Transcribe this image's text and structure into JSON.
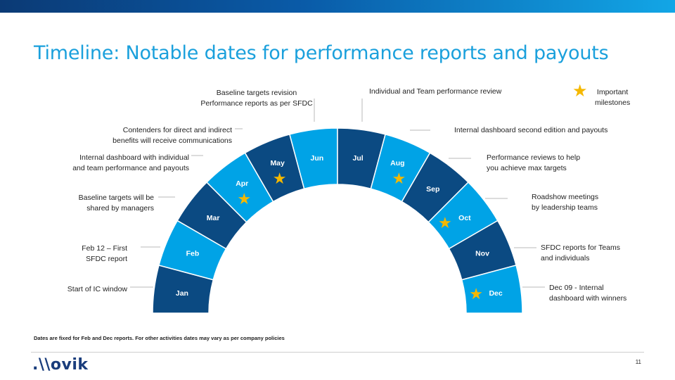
{
  "title": "Timeline: Notable dates for performance reports and payouts",
  "colors": {
    "dark": "#0b4a82",
    "light": "#00a3e6",
    "star": "#f5b800",
    "leader": "#b9b9b9"
  },
  "months": [
    {
      "label": "Jan",
      "tone": "dark",
      "star": false
    },
    {
      "label": "Feb",
      "tone": "light",
      "star": false
    },
    {
      "label": "Mar",
      "tone": "dark",
      "star": false
    },
    {
      "label": "Apr",
      "tone": "light",
      "star": true
    },
    {
      "label": "May",
      "tone": "dark",
      "star": true
    },
    {
      "label": "Jun",
      "tone": "light",
      "star": false
    },
    {
      "label": "Jul",
      "tone": "dark",
      "star": false
    },
    {
      "label": "Aug",
      "tone": "light",
      "star": true
    },
    {
      "label": "Sep",
      "tone": "dark",
      "star": false
    },
    {
      "label": "Oct",
      "tone": "light",
      "star": true
    },
    {
      "label": "Nov",
      "tone": "dark",
      "star": false
    },
    {
      "label": "Dec",
      "tone": "light",
      "star": true
    }
  ],
  "events": {
    "jan": "Start of IC window",
    "feb": "Feb 12 – First\nSFDC report",
    "mar": "Baseline targets will be\nshared by managers",
    "apr": "Internal dashboard with individual\nand team performance and payouts",
    "may": "Contenders for direct and indirect\nbenefits will receive communications",
    "jun": "Baseline targets revision\nPerformance reports as per SFDC",
    "jul": "Individual and Team performance review",
    "aug": "Internal dashboard second edition and payouts",
    "sep": "Performance reviews to help\nyou achieve max targets",
    "oct": "Roadshow meetings\nby leadership teams",
    "nov": "SFDC reports for Teams\nand individuals",
    "dec": "Dec 09 - Internal\ndashboard with winners"
  },
  "legend": {
    "star_icon": "star-icon",
    "text": "Important\nmilestones"
  },
  "footnote": "Dates are fixed for Feb and Dec reports. For other activities dates may vary as per company policies",
  "logo": ".\\ovik",
  "page_number": "11"
}
